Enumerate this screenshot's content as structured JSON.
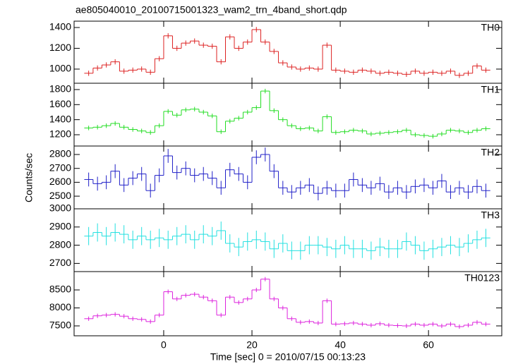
{
  "chart_data": {
    "type": "step",
    "title": "ae805040010_20100715001323_wam2_trn_4band_short.qdp",
    "xlabel": "Time [sec] 0 = 2010/07/15 00:13:23",
    "ylabel": "Counts/sec",
    "xlim": [
      -20.3,
      76.6
    ],
    "xticks": [
      0,
      20,
      40,
      60
    ],
    "x": [
      -17,
      -15,
      -13,
      -11,
      -9,
      -7,
      -5,
      -3,
      -1,
      1,
      3,
      5,
      7,
      9,
      11,
      13,
      15,
      17,
      19,
      21,
      23,
      25,
      27,
      29,
      31,
      33,
      35,
      37,
      39,
      41,
      43,
      45,
      47,
      49,
      51,
      53,
      55,
      57,
      59,
      61,
      63,
      65,
      67,
      69,
      71,
      73
    ],
    "panels": [
      {
        "name": "TH0",
        "color": "#dd2222",
        "error": 25,
        "ylim": [
          864,
          1461
        ],
        "yticks": [
          1000,
          1200,
          1400
        ],
        "values": [
          960,
          1010,
          1040,
          1070,
          980,
          990,
          1000,
          970,
          1100,
          1320,
          1200,
          1250,
          1270,
          1230,
          1220,
          1070,
          1310,
          1200,
          1260,
          1380,
          1260,
          1170,
          1060,
          1020,
          1000,
          1010,
          1000,
          1230,
          990,
          980,
          970,
          990,
          980,
          960,
          970,
          960,
          950,
          980,
          960,
          970,
          960,
          980,
          940,
          960,
          1030,
          990
        ]
      },
      {
        "name": "TH1",
        "color": "#22dd22",
        "error": 30,
        "ylim": [
          1050,
          1884
        ],
        "yticks": [
          1200,
          1400,
          1600,
          1800
        ],
        "values": [
          1290,
          1300,
          1320,
          1350,
          1300,
          1270,
          1250,
          1230,
          1320,
          1510,
          1460,
          1530,
          1540,
          1500,
          1450,
          1240,
          1380,
          1420,
          1500,
          1560,
          1780,
          1520,
          1400,
          1320,
          1280,
          1290,
          1250,
          1440,
          1230,
          1240,
          1260,
          1250,
          1210,
          1220,
          1230,
          1240,
          1260,
          1200,
          1190,
          1180,
          1210,
          1260,
          1250,
          1230,
          1260,
          1280
        ]
      },
      {
        "name": "TH2",
        "color": "#2020c8",
        "error": 50,
        "ylim": [
          2409,
          2861
        ],
        "yticks": [
          2500,
          2600,
          2700,
          2800
        ],
        "values": [
          2620,
          2590,
          2600,
          2680,
          2580,
          2630,
          2660,
          2540,
          2650,
          2790,
          2670,
          2700,
          2650,
          2660,
          2630,
          2560,
          2690,
          2660,
          2600,
          2780,
          2800,
          2680,
          2560,
          2530,
          2560,
          2580,
          2520,
          2560,
          2540,
          2540,
          2620,
          2580,
          2560,
          2590,
          2530,
          2560,
          2530,
          2570,
          2580,
          2560,
          2610,
          2530,
          2560,
          2530,
          2570,
          2540
        ]
      },
      {
        "name": "TH3",
        "color": "#22e0e0",
        "error": 50,
        "ylim": [
          2655,
          3000
        ],
        "yticks": [
          2700,
          2800,
          2900,
          3000
        ],
        "values": [
          2850,
          2870,
          2850,
          2870,
          2860,
          2830,
          2850,
          2830,
          2840,
          2830,
          2850,
          2860,
          2830,
          2860,
          2850,
          2880,
          2810,
          2790,
          2820,
          2830,
          2820,
          2780,
          2810,
          2770,
          2770,
          2800,
          2800,
          2790,
          2780,
          2800,
          2780,
          2780,
          2770,
          2790,
          2780,
          2780,
          2820,
          2800,
          2770,
          2780,
          2790,
          2800,
          2790,
          2810,
          2830,
          2840
        ]
      },
      {
        "name": "TH0123",
        "color": "#dd22dd",
        "error": 60,
        "ylim": [
          7225,
          9010
        ],
        "yticks": [
          7500,
          8000,
          8500
        ],
        "values": [
          7700,
          7780,
          7800,
          7820,
          7770,
          7700,
          7680,
          7620,
          7800,
          8450,
          8250,
          8350,
          8380,
          8300,
          8200,
          7800,
          8300,
          8150,
          8250,
          8500,
          8800,
          8250,
          8000,
          7700,
          7600,
          7620,
          7580,
          8200,
          7550,
          7560,
          7580,
          7550,
          7520,
          7560,
          7520,
          7510,
          7500,
          7550,
          7520,
          7550,
          7500,
          7550,
          7480,
          7520,
          7600,
          7550
        ]
      }
    ]
  }
}
